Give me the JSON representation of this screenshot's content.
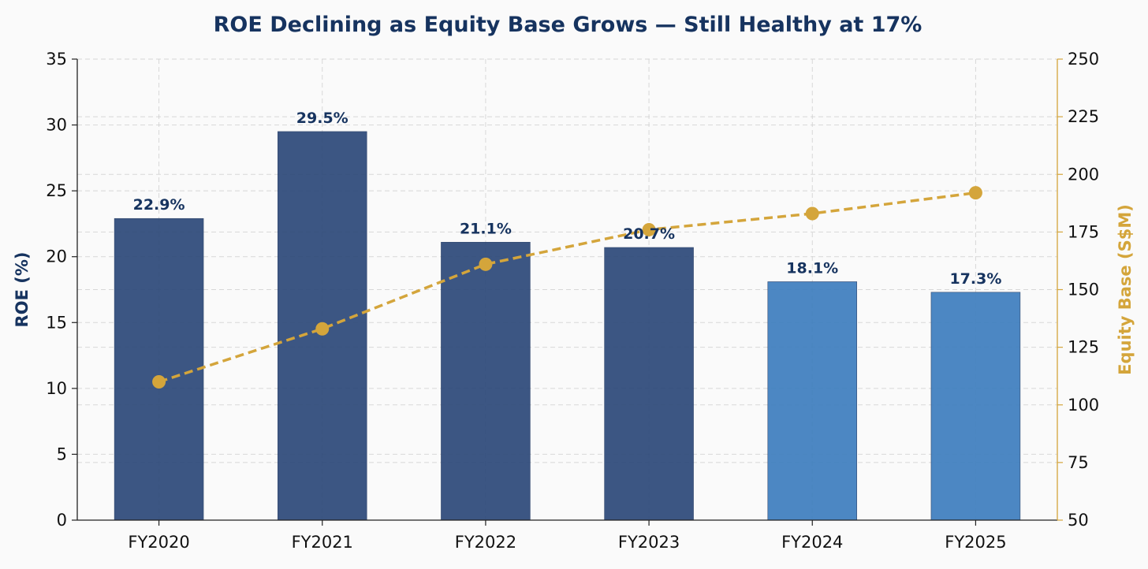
{
  "chart_data": {
    "type": "bar",
    "title": "ROE Declining as Equity Base Grows — Still Healthy at 17%",
    "categories": [
      "FY2020",
      "FY2021",
      "FY2022",
      "FY2023",
      "FY2024",
      "FY2025"
    ],
    "series": [
      {
        "axis": "left",
        "type": "bar",
        "values": [
          22.9,
          29.5,
          21.1,
          20.7,
          18.1,
          17.3
        ],
        "data_labels": [
          "22.9%",
          "29.5%",
          "21.1%",
          "20.7%",
          "18.1%",
          "17.3%"
        ],
        "colors": [
          "#2e4a7a",
          "#2e4a7a",
          "#2e4a7a",
          "#2e4a7a",
          "#3f7fbf",
          "#3f7fbf"
        ]
      },
      {
        "axis": "right",
        "type": "line",
        "style": "dashed",
        "values": [
          110,
          133,
          161,
          176,
          183,
          192
        ],
        "color": "#d4a53b"
      }
    ],
    "y_left": {
      "label": "ROE (%)",
      "range": [
        0,
        35
      ],
      "ticks": [
        0,
        5,
        10,
        15,
        20,
        25,
        30,
        35
      ],
      "color": "#16335f"
    },
    "y_right": {
      "label": "Equity Base (S$M)",
      "range": [
        50,
        250
      ],
      "ticks": [
        50,
        75,
        100,
        125,
        150,
        175,
        200,
        225,
        250
      ],
      "color": "#d4a53b"
    },
    "grid": true,
    "title_color": "#16335f",
    "label_color": "#16335f"
  }
}
